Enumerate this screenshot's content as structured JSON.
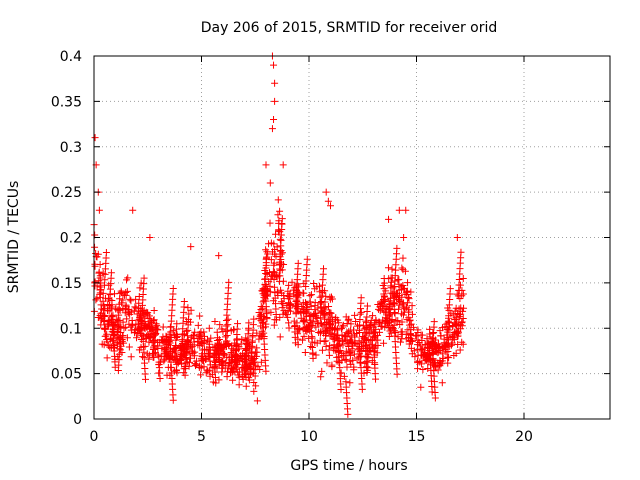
{
  "chart_data": {
    "type": "scatter",
    "title": "Day 206 of 2015, SRMTID for receiver orid",
    "xlabel": "GPS time / hours",
    "ylabel": "SRMTID / TECUs",
    "xlim": [
      0,
      24
    ],
    "ylim": [
      0,
      0.4
    ],
    "x_ticks": [
      0,
      5,
      10,
      15,
      20
    ],
    "x_tick_labels": [
      "0",
      "5",
      "10",
      "15",
      "20"
    ],
    "y_ticks": [
      0,
      0.05,
      0.1,
      0.15,
      0.2,
      0.25,
      0.3,
      0.35,
      0.4
    ],
    "y_tick_labels": [
      "0",
      "0.05",
      "0.1",
      "0.15",
      "0.2",
      "0.25",
      "0.3",
      "0.35",
      "0.4"
    ],
    "grid": true,
    "marker": "plus",
    "series_color": "#ff0000",
    "x_range_of_data": [
      0,
      17.2
    ],
    "envelope": [
      {
        "x": 0.0,
        "center": 0.16,
        "spread": 0.05
      },
      {
        "x": 0.5,
        "center": 0.11,
        "spread": 0.04
      },
      {
        "x": 1.0,
        "center": 0.1,
        "spread": 0.035
      },
      {
        "x": 1.5,
        "center": 0.12,
        "spread": 0.04
      },
      {
        "x": 2.0,
        "center": 0.11,
        "spread": 0.035
      },
      {
        "x": 2.5,
        "center": 0.095,
        "spread": 0.03
      },
      {
        "x": 3.0,
        "center": 0.085,
        "spread": 0.03
      },
      {
        "x": 3.5,
        "center": 0.075,
        "spread": 0.025
      },
      {
        "x": 4.0,
        "center": 0.075,
        "spread": 0.025
      },
      {
        "x": 4.5,
        "center": 0.085,
        "spread": 0.03
      },
      {
        "x": 5.0,
        "center": 0.08,
        "spread": 0.028
      },
      {
        "x": 5.5,
        "center": 0.07,
        "spread": 0.025
      },
      {
        "x": 6.0,
        "center": 0.075,
        "spread": 0.025
      },
      {
        "x": 6.5,
        "center": 0.07,
        "spread": 0.025
      },
      {
        "x": 7.0,
        "center": 0.065,
        "spread": 0.025
      },
      {
        "x": 7.5,
        "center": 0.06,
        "spread": 0.025
      },
      {
        "x": 8.0,
        "center": 0.14,
        "spread": 0.05
      },
      {
        "x": 8.5,
        "center": 0.18,
        "spread": 0.06
      },
      {
        "x": 9.0,
        "center": 0.13,
        "spread": 0.04
      },
      {
        "x": 9.5,
        "center": 0.12,
        "spread": 0.035
      },
      {
        "x": 10.0,
        "center": 0.11,
        "spread": 0.035
      },
      {
        "x": 10.5,
        "center": 0.11,
        "spread": 0.04
      },
      {
        "x": 11.0,
        "center": 0.1,
        "spread": 0.035
      },
      {
        "x": 11.5,
        "center": 0.085,
        "spread": 0.03
      },
      {
        "x": 12.0,
        "center": 0.08,
        "spread": 0.03
      },
      {
        "x": 12.5,
        "center": 0.085,
        "spread": 0.03
      },
      {
        "x": 13.0,
        "center": 0.09,
        "spread": 0.03
      },
      {
        "x": 13.5,
        "center": 0.12,
        "spread": 0.04
      },
      {
        "x": 14.0,
        "center": 0.12,
        "spread": 0.035
      },
      {
        "x": 14.5,
        "center": 0.13,
        "spread": 0.045
      },
      {
        "x": 15.0,
        "center": 0.08,
        "spread": 0.025
      },
      {
        "x": 15.5,
        "center": 0.075,
        "spread": 0.022
      },
      {
        "x": 16.0,
        "center": 0.075,
        "spread": 0.022
      },
      {
        "x": 16.5,
        "center": 0.09,
        "spread": 0.03
      },
      {
        "x": 17.0,
        "center": 0.11,
        "spread": 0.035
      },
      {
        "x": 17.2,
        "center": 0.12,
        "spread": 0.03
      }
    ],
    "notable_points": [
      {
        "x": 0.05,
        "y": 0.31
      },
      {
        "x": 0.1,
        "y": 0.28
      },
      {
        "x": 0.2,
        "y": 0.25
      },
      {
        "x": 0.25,
        "y": 0.23
      },
      {
        "x": 1.8,
        "y": 0.23
      },
      {
        "x": 2.6,
        "y": 0.2
      },
      {
        "x": 4.5,
        "y": 0.19
      },
      {
        "x": 5.8,
        "y": 0.18
      },
      {
        "x": 7.6,
        "y": 0.02
      },
      {
        "x": 8.3,
        "y": 0.4
      },
      {
        "x": 8.35,
        "y": 0.39
      },
      {
        "x": 8.4,
        "y": 0.37
      },
      {
        "x": 8.4,
        "y": 0.35
      },
      {
        "x": 8.35,
        "y": 0.33
      },
      {
        "x": 8.3,
        "y": 0.32
      },
      {
        "x": 8.0,
        "y": 0.28
      },
      {
        "x": 8.8,
        "y": 0.28
      },
      {
        "x": 8.2,
        "y": 0.26
      },
      {
        "x": 10.8,
        "y": 0.25
      },
      {
        "x": 10.9,
        "y": 0.24
      },
      {
        "x": 11.0,
        "y": 0.235
      },
      {
        "x": 13.7,
        "y": 0.22
      },
      {
        "x": 14.2,
        "y": 0.23
      },
      {
        "x": 14.5,
        "y": 0.23
      },
      {
        "x": 14.4,
        "y": 0.2
      },
      {
        "x": 16.9,
        "y": 0.2
      },
      {
        "x": 11.9,
        "y": 0.04
      },
      {
        "x": 15.2,
        "y": 0.035
      },
      {
        "x": 16.2,
        "y": 0.04
      }
    ]
  }
}
